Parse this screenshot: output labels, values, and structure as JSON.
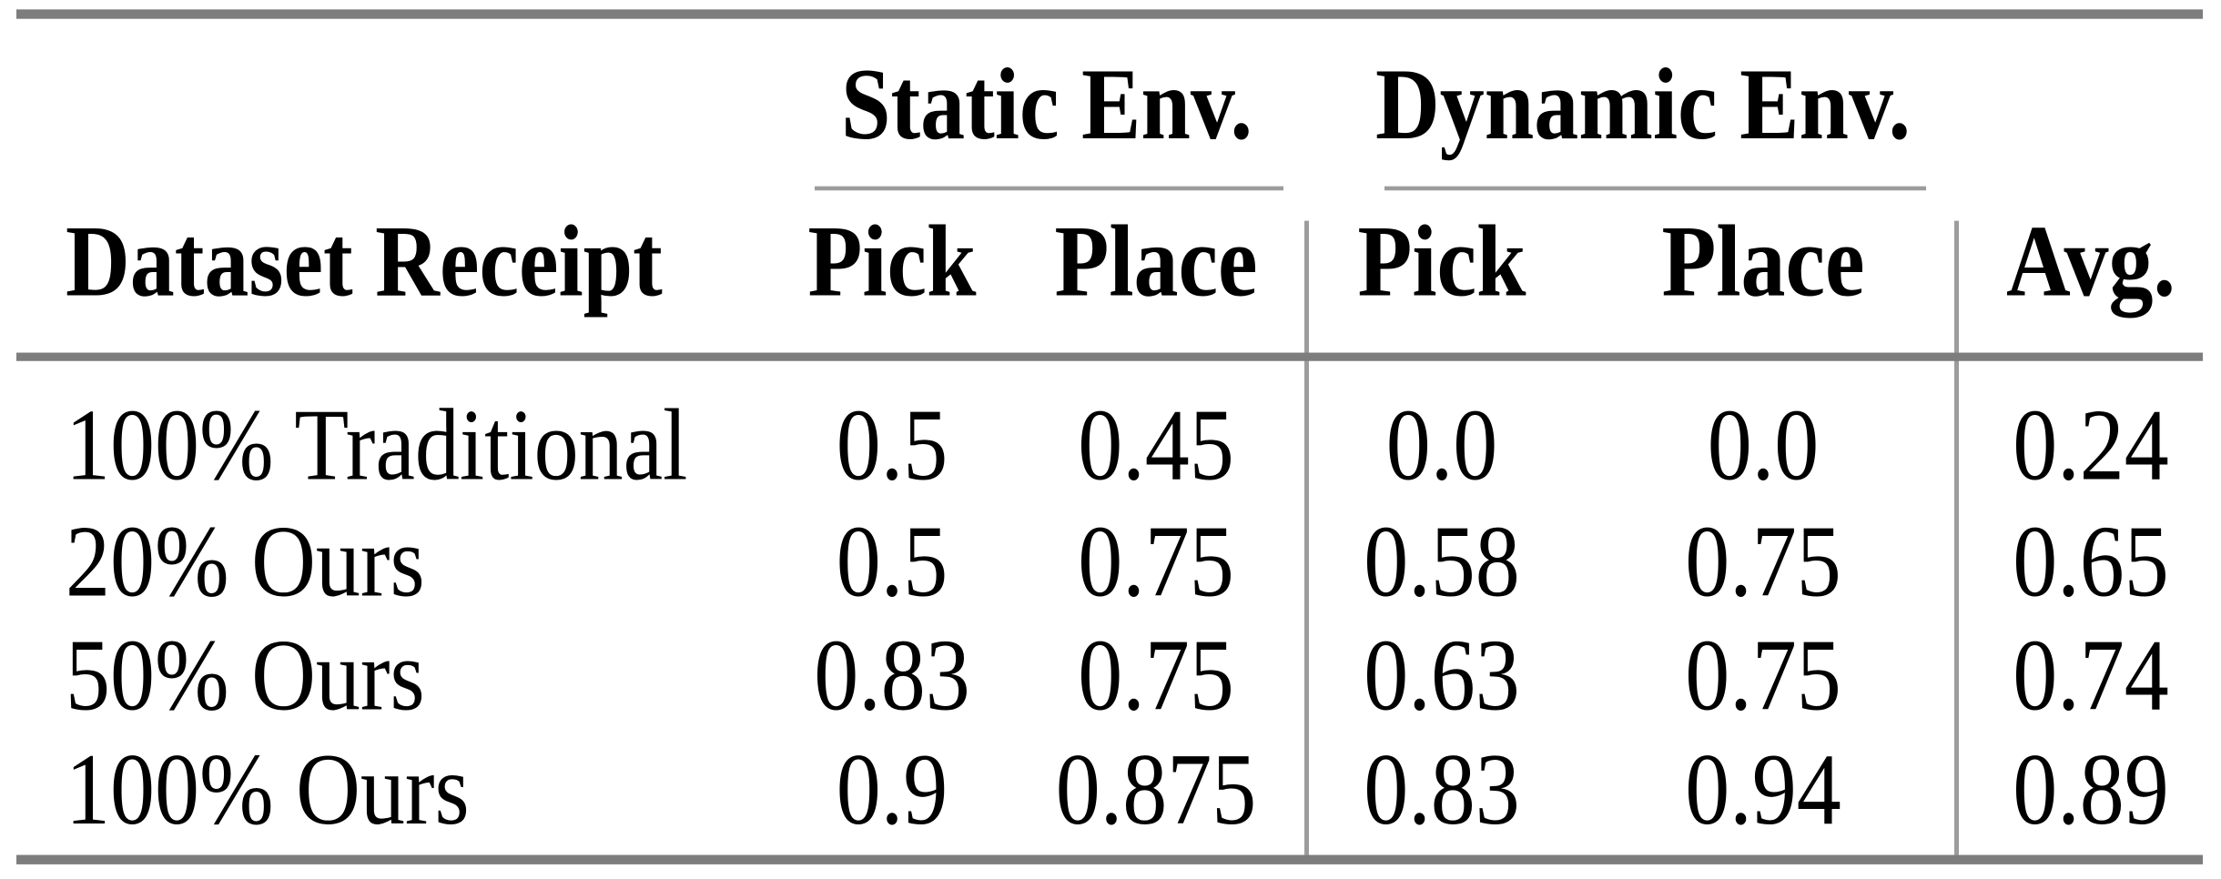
{
  "table": {
    "groups": {
      "static": "Static Env.",
      "dynamic": "Dynamic Env."
    },
    "columns": {
      "label": "Dataset Receipt",
      "static_pick": "Pick",
      "static_place": "Place",
      "dynamic_pick": "Pick",
      "dynamic_place": "Place",
      "avg": "Avg."
    },
    "rows": [
      {
        "label": "100% Traditional",
        "static_pick": "0.5",
        "static_place": "0.45",
        "dynamic_pick": "0.0",
        "dynamic_place": "0.0",
        "avg": "0.24"
      },
      {
        "label": "20% Ours",
        "static_pick": "0.5",
        "static_place": "0.75",
        "dynamic_pick": "0.58",
        "dynamic_place": "0.75",
        "avg": "0.65"
      },
      {
        "label": "50% Ours",
        "static_pick": "0.83",
        "static_place": "0.75",
        "dynamic_pick": "0.63",
        "dynamic_place": "0.75",
        "avg": "0.74"
      },
      {
        "label": "100% Ours",
        "static_pick": "0.9",
        "static_place": "0.875",
        "dynamic_pick": "0.83",
        "dynamic_place": "0.94",
        "avg": "0.89"
      }
    ]
  },
  "colors": {
    "rule_thick": "#7d7d7d",
    "rule_thin": "#9c9c9c",
    "text": "#000000",
    "background": "#ffffff"
  }
}
